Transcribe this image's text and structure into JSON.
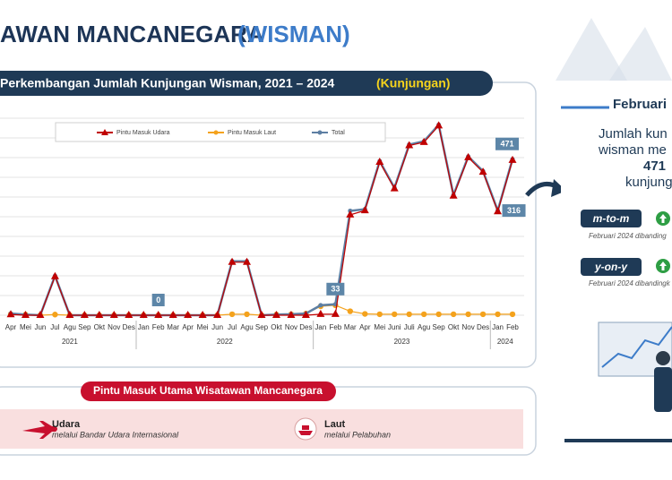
{
  "header": {
    "title": "AWAN MANCANEGARA",
    "highlight": "(WISMAN)"
  },
  "chart_data": {
    "type": "line",
    "title": "Perkembangan Jumlah Kunjungan Wisman, 2021 – 2024",
    "title_unit": "(Kunjungan)",
    "groups": [
      {
        "label": "2021",
        "categories": [
          "Apr",
          "Mei",
          "Jun",
          "Jul",
          "Agu",
          "Sep",
          "Okt",
          "Nov",
          "Des"
        ]
      },
      {
        "label": "2022",
        "categories": [
          "Jan",
          "Feb",
          "Mar",
          "Apr",
          "Mei",
          "Jun",
          "Jul",
          "Agu",
          "Sep",
          "Okt",
          "Nov",
          "Des"
        ]
      },
      {
        "label": "2023",
        "categories": [
          "Jan",
          "Feb",
          "Mar",
          "Apr",
          "Mei",
          "Juni",
          "Juli",
          "Agu",
          "Sep",
          "Okt",
          "Nov",
          "Des"
        ]
      },
      {
        "label": "2024",
        "categories": [
          "Jan",
          "Feb"
        ]
      }
    ],
    "series": [
      {
        "name": "Pintu Masuk Udara",
        "color": "#c00000",
        "marker": "triangle",
        "values": [
          2,
          0,
          0,
          117,
          0,
          0,
          0,
          0,
          0,
          0,
          0,
          0,
          0,
          0,
          0,
          160,
          160,
          0,
          0,
          0,
          0,
          3,
          3,
          303,
          316,
          462,
          382,
          512,
          522,
          572,
          360,
          476,
          432,
          313,
          468
        ]
      },
      {
        "name": "Pintu Masuk Laut",
        "color": "#f4a21c",
        "marker": "circle",
        "values": [
          3,
          2,
          0,
          2,
          0,
          0,
          0,
          0,
          0,
          0,
          0,
          0,
          0,
          0,
          0,
          3,
          3,
          0,
          2,
          3,
          5,
          27,
          30,
          12,
          4,
          3,
          3,
          3,
          3,
          3,
          3,
          3,
          3,
          3,
          3
        ]
      },
      {
        "name": "Total",
        "color": "#5d7fa3",
        "marker": "circle",
        "values": [
          5,
          2,
          0,
          119,
          0,
          0,
          0,
          0,
          0,
          0,
          0,
          0,
          0,
          0,
          0,
          163,
          163,
          0,
          2,
          3,
          5,
          30,
          33,
          315,
          320,
          465,
          385,
          515,
          525,
          575,
          363,
          479,
          435,
          316,
          471
        ],
        "value_labels": [
          null,
          null,
          null,
          null,
          null,
          null,
          null,
          null,
          null,
          null,
          "0",
          null,
          null,
          null,
          null,
          null,
          null,
          null,
          null,
          null,
          null,
          null,
          "33",
          null,
          null,
          null,
          null,
          null,
          null,
          null,
          null,
          null,
          null,
          "316",
          "471"
        ]
      }
    ],
    "ylim": [
      0,
      600
    ],
    "grid": true
  },
  "summary": {
    "month": "Februari",
    "lines": [
      "Jumlah kun",
      "wisman me"
    ],
    "value": "471",
    "unit": "kunjung",
    "mtm": {
      "label": "m-to-m",
      "note": "Februari 2024 dibanding"
    },
    "yoy": {
      "label": "y-on-y",
      "note": "Februari 2024 dibandingk"
    }
  },
  "entry_points": {
    "title": "Pintu Masuk Utama Wisatawan Mancanegara",
    "air": {
      "name": "Udara",
      "detail": "melalui Bandar Udara Internasional"
    },
    "sea": {
      "name": "Laut",
      "detail": "melalui Pelabuhan"
    }
  }
}
